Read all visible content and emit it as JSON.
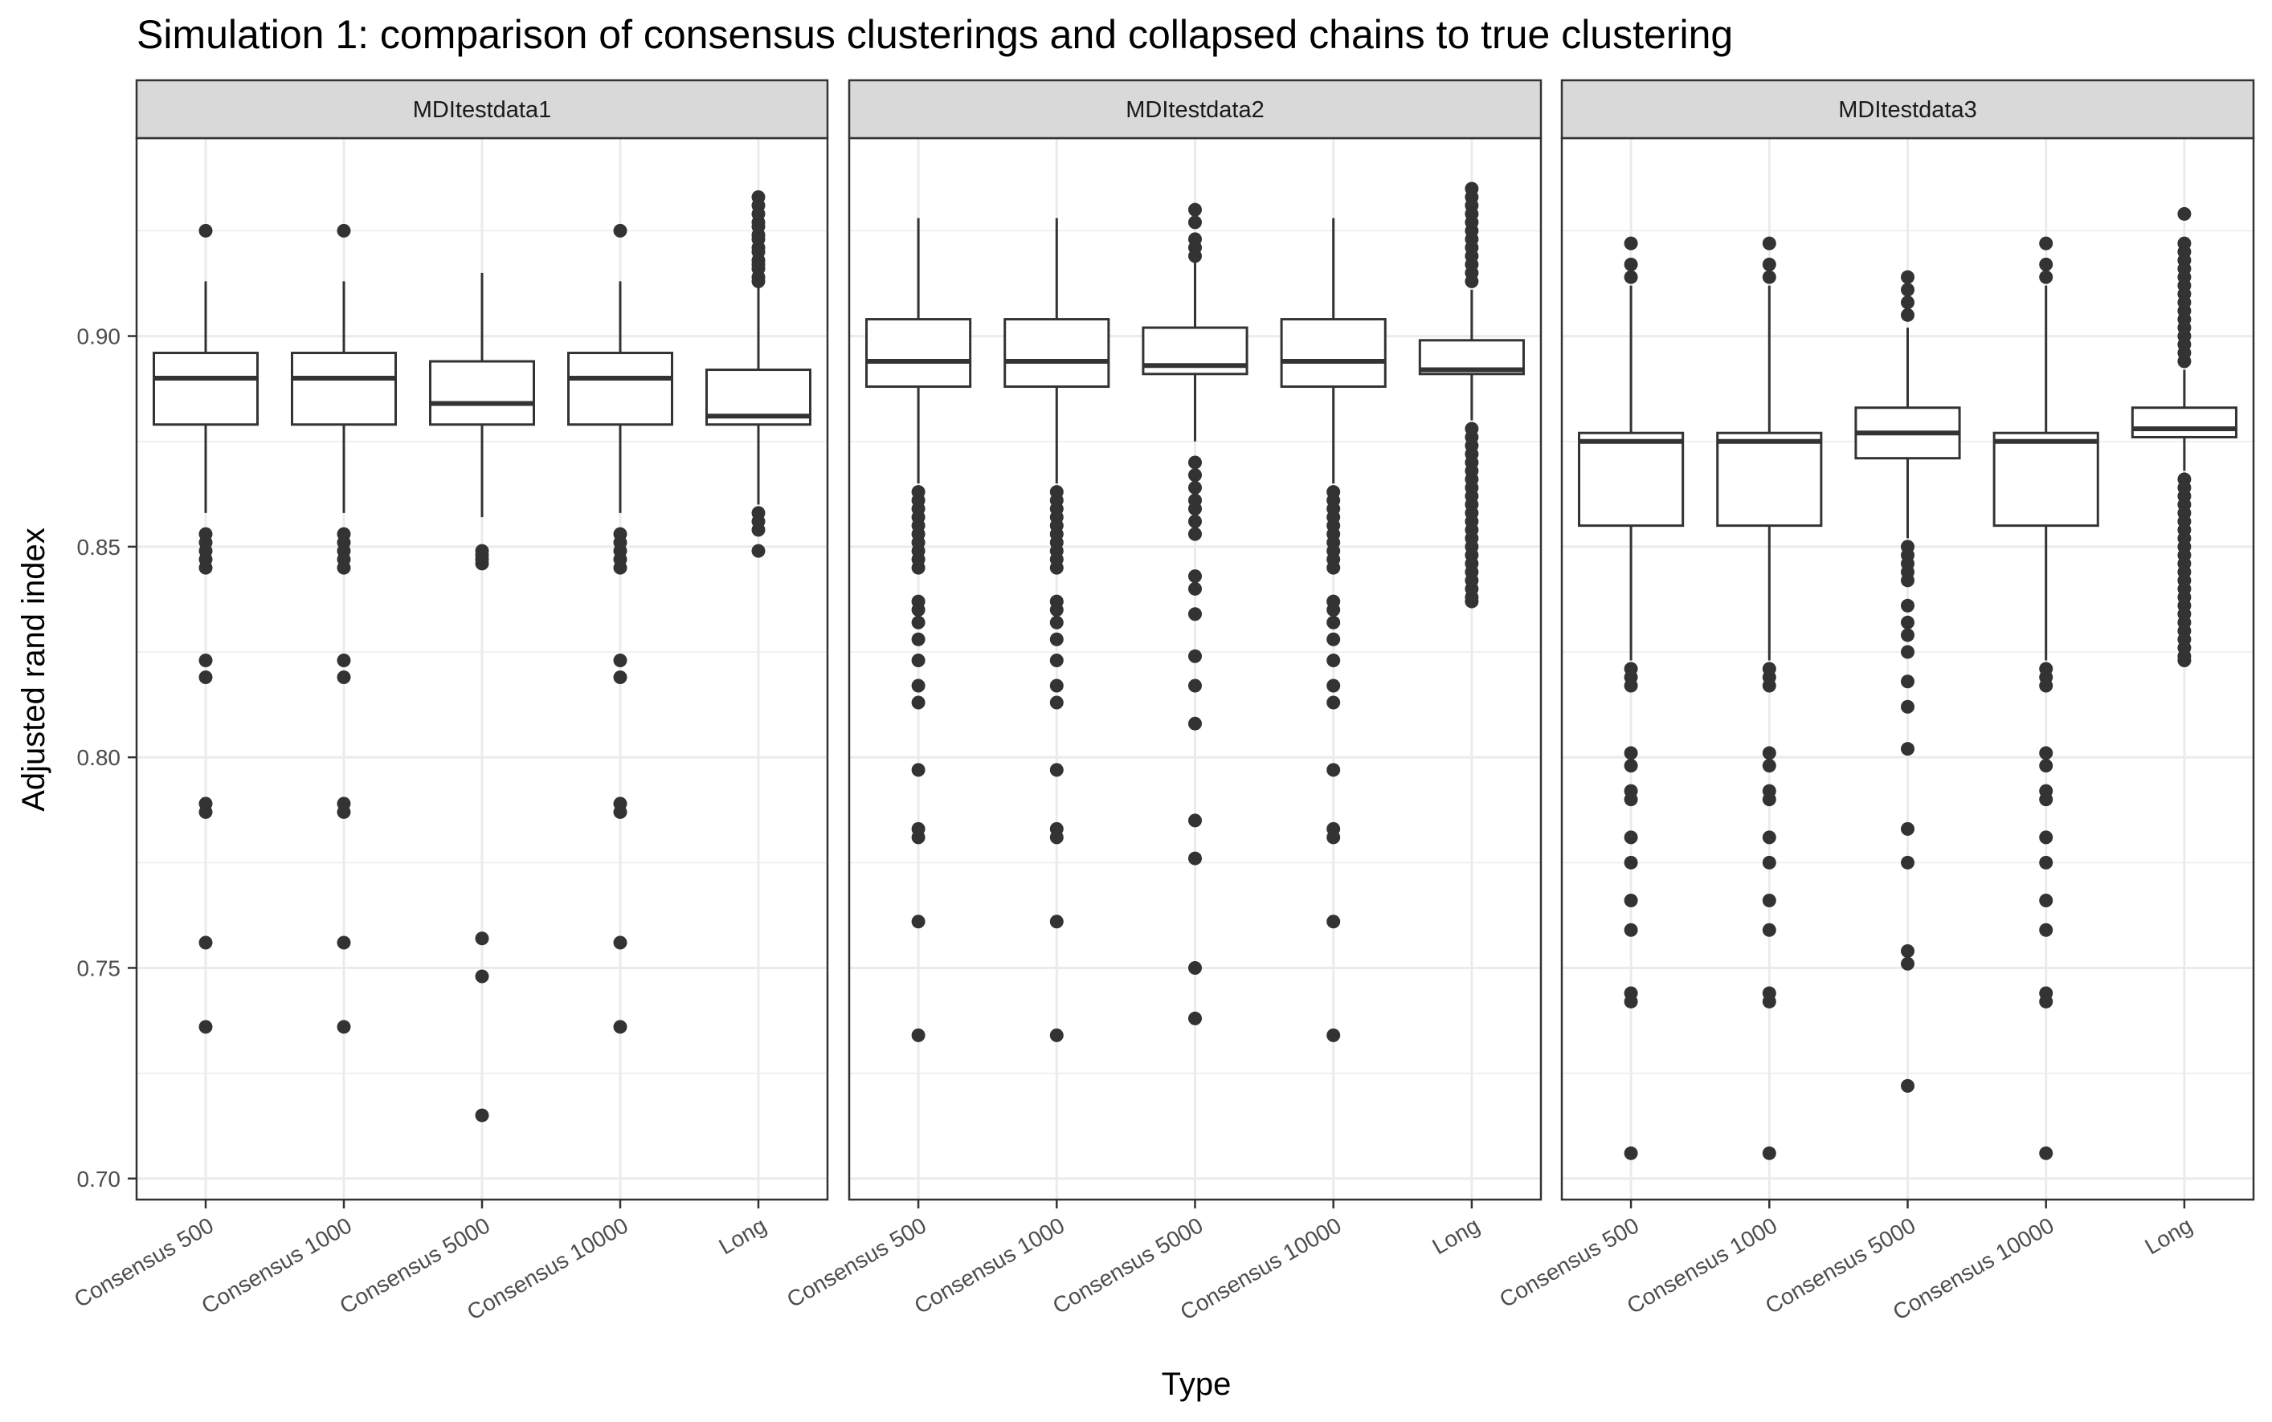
{
  "chart_data": {
    "type": "boxplot",
    "title": "Simulation 1: comparison of consensus clusterings and collapsed chains to true clustering",
    "xlabel": "Type",
    "ylabel": "Adjusted rand index",
    "ylim": [
      0.695,
      0.947
    ],
    "yticks": [
      "0.70",
      "0.75",
      "0.80",
      "0.85",
      "0.90"
    ],
    "categories": [
      "Consensus 500",
      "Consensus 1000",
      "Consensus 5000",
      "Consensus 10000",
      "Long"
    ],
    "grid": true,
    "colors": {
      "box_stroke": "#333333",
      "outlier": "#333333",
      "grid": "#ebebeb",
      "strip_fill": "#d9d9d9"
    },
    "panels": [
      {
        "name": "MDItestdata1",
        "boxes": [
          {
            "category": "Consensus 500",
            "lower_whisker": 0.858,
            "q1": 0.879,
            "median": 0.89,
            "q3": 0.896,
            "upper_whisker": 0.913,
            "outliers": [
              0.925,
              0.853,
              0.851,
              0.849,
              0.847,
              0.845,
              0.823,
              0.819,
              0.789,
              0.787,
              0.756,
              0.736
            ]
          },
          {
            "category": "Consensus 1000",
            "lower_whisker": 0.858,
            "q1": 0.879,
            "median": 0.89,
            "q3": 0.896,
            "upper_whisker": 0.913,
            "outliers": [
              0.925,
              0.853,
              0.851,
              0.849,
              0.847,
              0.845,
              0.823,
              0.819,
              0.789,
              0.787,
              0.756,
              0.736
            ]
          },
          {
            "category": "Consensus 5000",
            "lower_whisker": 0.857,
            "q1": 0.879,
            "median": 0.884,
            "q3": 0.894,
            "upper_whisker": 0.915,
            "outliers": [
              0.849,
              0.848,
              0.847,
              0.846,
              0.757,
              0.748,
              0.715
            ]
          },
          {
            "category": "Consensus 10000",
            "lower_whisker": 0.858,
            "q1": 0.879,
            "median": 0.89,
            "q3": 0.896,
            "upper_whisker": 0.913,
            "outliers": [
              0.925,
              0.853,
              0.851,
              0.849,
              0.847,
              0.845,
              0.823,
              0.819,
              0.789,
              0.787,
              0.756,
              0.736
            ]
          },
          {
            "category": "Long",
            "lower_whisker": 0.86,
            "q1": 0.879,
            "median": 0.881,
            "q3": 0.892,
            "upper_whisker": 0.912,
            "outliers": [
              0.933,
              0.931,
              0.929,
              0.927,
              0.926,
              0.924,
              0.923,
              0.921,
              0.92,
              0.918,
              0.917,
              0.916,
              0.914,
              0.913,
              0.858,
              0.856,
              0.854,
              0.849
            ]
          }
        ]
      },
      {
        "name": "MDItestdata2",
        "boxes": [
          {
            "category": "Consensus 500",
            "lower_whisker": 0.865,
            "q1": 0.888,
            "median": 0.894,
            "q3": 0.904,
            "upper_whisker": 0.928,
            "outliers": [
              0.863,
              0.861,
              0.859,
              0.857,
              0.855,
              0.853,
              0.851,
              0.849,
              0.847,
              0.845,
              0.837,
              0.835,
              0.832,
              0.828,
              0.823,
              0.817,
              0.813,
              0.797,
              0.783,
              0.781,
              0.761,
              0.734
            ]
          },
          {
            "category": "Consensus 1000",
            "lower_whisker": 0.865,
            "q1": 0.888,
            "median": 0.894,
            "q3": 0.904,
            "upper_whisker": 0.928,
            "outliers": [
              0.863,
              0.861,
              0.859,
              0.857,
              0.855,
              0.853,
              0.851,
              0.849,
              0.847,
              0.845,
              0.837,
              0.835,
              0.832,
              0.828,
              0.823,
              0.817,
              0.813,
              0.797,
              0.783,
              0.781,
              0.761,
              0.734
            ]
          },
          {
            "category": "Consensus 5000",
            "lower_whisker": 0.875,
            "q1": 0.891,
            "median": 0.893,
            "q3": 0.902,
            "upper_whisker": 0.918,
            "outliers": [
              0.93,
              0.927,
              0.923,
              0.921,
              0.919,
              0.87,
              0.867,
              0.864,
              0.861,
              0.859,
              0.856,
              0.853,
              0.843,
              0.84,
              0.834,
              0.824,
              0.817,
              0.808,
              0.785,
              0.776,
              0.75,
              0.738
            ]
          },
          {
            "category": "Consensus 10000",
            "lower_whisker": 0.865,
            "q1": 0.888,
            "median": 0.894,
            "q3": 0.904,
            "upper_whisker": 0.928,
            "outliers": [
              0.863,
              0.861,
              0.859,
              0.857,
              0.855,
              0.853,
              0.851,
              0.849,
              0.847,
              0.845,
              0.837,
              0.835,
              0.832,
              0.828,
              0.823,
              0.817,
              0.813,
              0.797,
              0.783,
              0.781,
              0.761,
              0.734
            ]
          },
          {
            "category": "Long",
            "lower_whisker": 0.88,
            "q1": 0.891,
            "median": 0.892,
            "q3": 0.899,
            "upper_whisker": 0.911,
            "outliers": [
              0.935,
              0.933,
              0.931,
              0.929,
              0.927,
              0.925,
              0.923,
              0.921,
              0.919,
              0.917,
              0.915,
              0.913,
              0.878,
              0.876,
              0.874,
              0.872,
              0.87,
              0.868,
              0.866,
              0.864,
              0.862,
              0.86,
              0.858,
              0.856,
              0.854,
              0.852,
              0.85,
              0.848,
              0.846,
              0.844,
              0.842,
              0.84,
              0.838,
              0.837
            ]
          }
        ]
      },
      {
        "name": "MDItestdata3",
        "boxes": [
          {
            "category": "Consensus 500",
            "lower_whisker": 0.823,
            "q1": 0.855,
            "median": 0.875,
            "q3": 0.877,
            "upper_whisker": 0.912,
            "outliers": [
              0.922,
              0.917,
              0.914,
              0.821,
              0.819,
              0.817,
              0.801,
              0.798,
              0.792,
              0.79,
              0.781,
              0.775,
              0.766,
              0.759,
              0.744,
              0.742,
              0.706
            ]
          },
          {
            "category": "Consensus 1000",
            "lower_whisker": 0.823,
            "q1": 0.855,
            "median": 0.875,
            "q3": 0.877,
            "upper_whisker": 0.912,
            "outliers": [
              0.922,
              0.917,
              0.914,
              0.821,
              0.819,
              0.817,
              0.801,
              0.798,
              0.792,
              0.79,
              0.781,
              0.775,
              0.766,
              0.759,
              0.744,
              0.742,
              0.706
            ]
          },
          {
            "category": "Consensus 5000",
            "lower_whisker": 0.852,
            "q1": 0.871,
            "median": 0.877,
            "q3": 0.883,
            "upper_whisker": 0.902,
            "outliers": [
              0.914,
              0.911,
              0.908,
              0.905,
              0.85,
              0.848,
              0.846,
              0.844,
              0.842,
              0.836,
              0.832,
              0.829,
              0.825,
              0.818,
              0.812,
              0.802,
              0.783,
              0.775,
              0.754,
              0.751,
              0.722
            ]
          },
          {
            "category": "Consensus 10000",
            "lower_whisker": 0.823,
            "q1": 0.855,
            "median": 0.875,
            "q3": 0.877,
            "upper_whisker": 0.912,
            "outliers": [
              0.922,
              0.917,
              0.914,
              0.821,
              0.819,
              0.817,
              0.801,
              0.798,
              0.792,
              0.79,
              0.781,
              0.775,
              0.766,
              0.759,
              0.744,
              0.742,
              0.706
            ]
          },
          {
            "category": "Long",
            "lower_whisker": 0.868,
            "q1": 0.876,
            "median": 0.878,
            "q3": 0.883,
            "upper_whisker": 0.892,
            "outliers": [
              0.929,
              0.922,
              0.92,
              0.918,
              0.916,
              0.914,
              0.912,
              0.91,
              0.908,
              0.906,
              0.904,
              0.902,
              0.9,
              0.898,
              0.896,
              0.894,
              0.866,
              0.864,
              0.862,
              0.86,
              0.858,
              0.856,
              0.854,
              0.852,
              0.85,
              0.848,
              0.846,
              0.844,
              0.842,
              0.84,
              0.838,
              0.836,
              0.834,
              0.832,
              0.83,
              0.828,
              0.826,
              0.824,
              0.823
            ]
          }
        ]
      }
    ]
  }
}
